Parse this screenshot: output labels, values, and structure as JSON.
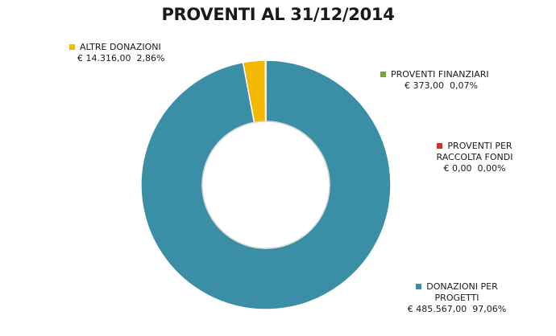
{
  "chart_data": {
    "type": "pie",
    "donut": true,
    "title": "PROVENTI AL 31/12/2014",
    "slices": [
      {
        "label_lines": [
          "DONAZIONI PER",
          "PROGETTI"
        ],
        "amount": "€ 485.567,00",
        "percent_label": "97,06%",
        "value": 485567.0,
        "percent": 97.06,
        "color": "#3a8fa6"
      },
      {
        "label_lines": [
          "ALTRE DONAZIONI"
        ],
        "amount": "€ 14.316,00",
        "percent_label": "2,86%",
        "value": 14316.0,
        "percent": 2.86,
        "color": "#f4b800"
      },
      {
        "label_lines": [
          "PROVENTI FINANZIARI"
        ],
        "amount": "€ 373,00",
        "percent_label": "0,07%",
        "value": 373.0,
        "percent": 0.07,
        "color": "#7aa23f"
      },
      {
        "label_lines": [
          "PROVENTI PER",
          "RACCOLTA FONDI"
        ],
        "amount": "€ 0,00",
        "percent_label": "0,00%",
        "value": 0.0,
        "percent": 0.0,
        "color": "#c0392b"
      }
    ]
  }
}
